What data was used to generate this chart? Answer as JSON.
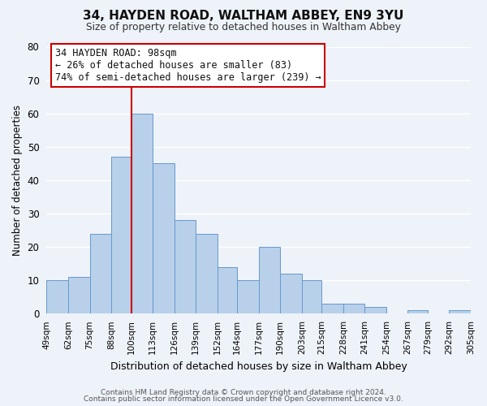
{
  "title": "34, HAYDEN ROAD, WALTHAM ABBEY, EN9 3YU",
  "subtitle": "Size of property relative to detached houses in Waltham Abbey",
  "xlabel": "Distribution of detached houses by size in Waltham Abbey",
  "ylabel": "Number of detached properties",
  "bar_color": "#b8d0ea",
  "bar_edge_color": "#6699cc",
  "background_color": "#eef2f9",
  "grid_color": "#ffffff",
  "bins": [
    49,
    62,
    75,
    88,
    100,
    113,
    126,
    139,
    152,
    164,
    177,
    190,
    203,
    215,
    228,
    241,
    254,
    267,
    279,
    292,
    305
  ],
  "bin_labels": [
    "49sqm",
    "62sqm",
    "75sqm",
    "88sqm",
    "100sqm",
    "113sqm",
    "126sqm",
    "139sqm",
    "152sqm",
    "164sqm",
    "177sqm",
    "190sqm",
    "203sqm",
    "215sqm",
    "228sqm",
    "241sqm",
    "254sqm",
    "267sqm",
    "279sqm",
    "292sqm",
    "305sqm"
  ],
  "values": [
    10,
    11,
    24,
    47,
    60,
    45,
    28,
    24,
    14,
    10,
    20,
    12,
    10,
    3,
    3,
    2,
    0,
    1,
    0,
    1
  ],
  "ylim": [
    0,
    80
  ],
  "yticks": [
    0,
    10,
    20,
    30,
    40,
    50,
    60,
    70,
    80
  ],
  "vline_x": 100,
  "vline_color": "#cc0000",
  "annotation_title": "34 HAYDEN ROAD: 98sqm",
  "annotation_line1": "← 26% of detached houses are smaller (83)",
  "annotation_line2": "74% of semi-detached houses are larger (239) →",
  "annotation_box_color": "#ffffff",
  "annotation_border_color": "#cc0000",
  "footer1": "Contains HM Land Registry data © Crown copyright and database right 2024.",
  "footer2": "Contains public sector information licensed under the Open Government Licence v3.0."
}
